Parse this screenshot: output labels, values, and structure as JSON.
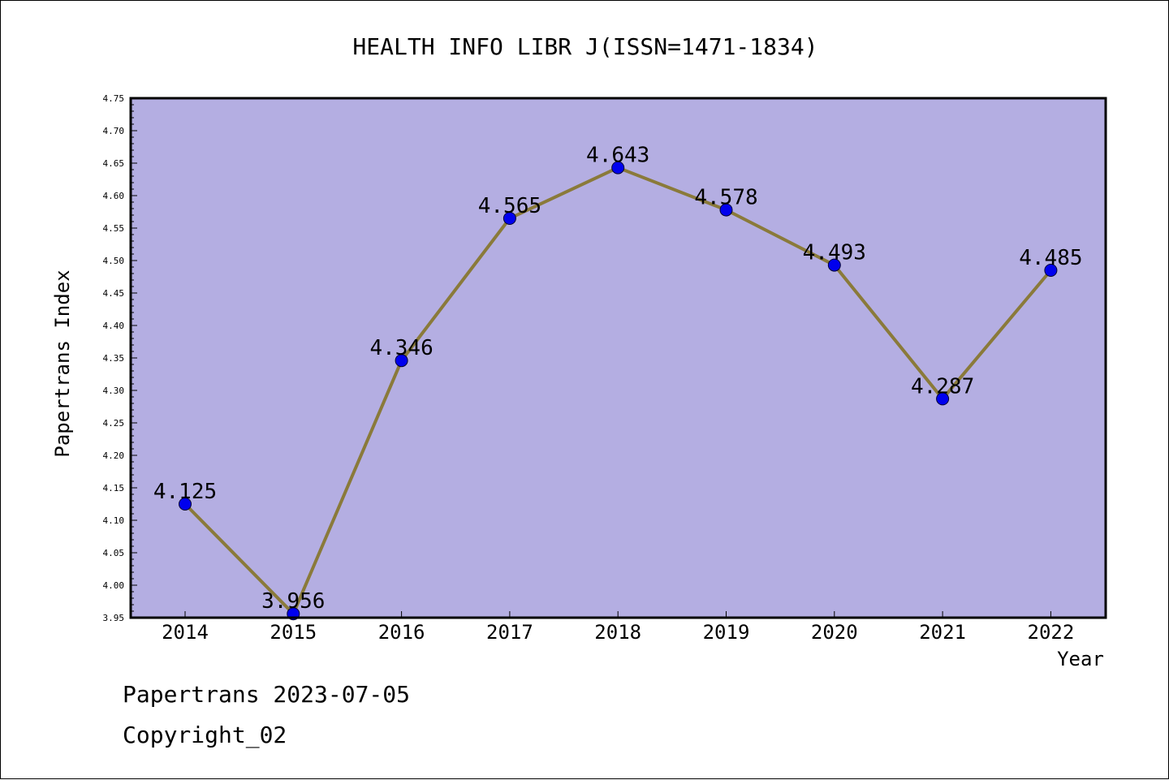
{
  "chart_data": {
    "type": "line",
    "title": "HEALTH INFO LIBR J(ISSN=1471-1834)",
    "xlabel": "Year",
    "ylabel": "Papertrans Index",
    "categories": [
      "2014",
      "2015",
      "2016",
      "2017",
      "2018",
      "2019",
      "2020",
      "2021",
      "2022"
    ],
    "values": [
      4.125,
      3.956,
      4.346,
      4.565,
      4.643,
      4.578,
      4.493,
      4.287,
      4.485
    ],
    "data_labels": [
      "4.125",
      "3.956",
      "4.346",
      "4.565",
      "4.643",
      "4.578",
      "4.493",
      "4.287",
      "4.485"
    ],
    "ylim": [
      3.95,
      4.75
    ],
    "yticks": [
      "3.95",
      "4.00",
      "4.05",
      "4.10",
      "4.15",
      "4.20",
      "4.25",
      "4.30",
      "4.35",
      "4.40",
      "4.45",
      "4.50",
      "4.55",
      "4.60",
      "4.65",
      "4.70",
      "4.75"
    ],
    "grid": false,
    "colors": {
      "plot_background": "#b4aee2",
      "line": "#8a7a3a",
      "marker": "#0000ee"
    }
  },
  "footer": {
    "line1": "Papertrans 2023-07-05",
    "line2": "Copyright_02"
  }
}
